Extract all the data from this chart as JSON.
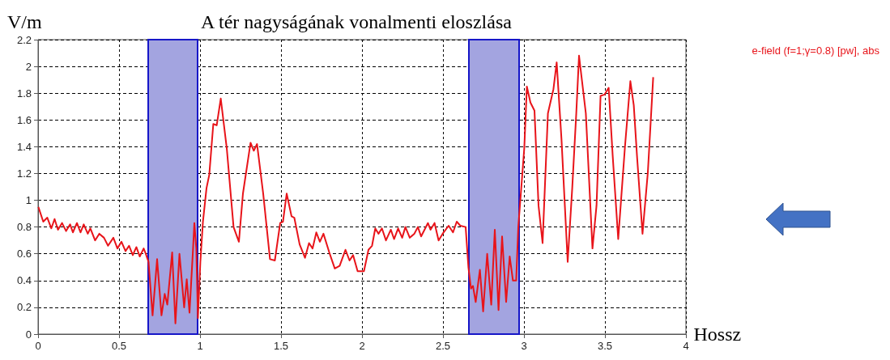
{
  "chart_data": {
    "type": "line",
    "title": "A tér nagyságának vonalmenti eloszlása",
    "xlabel": "Hossz",
    "ylabel": "V/m",
    "x": [
      0.002,
      0.032,
      0.057,
      0.082,
      0.102,
      0.123,
      0.148,
      0.173,
      0.198,
      0.215,
      0.24,
      0.262,
      0.282,
      0.307,
      0.323,
      0.352,
      0.378,
      0.407,
      0.432,
      0.465,
      0.49,
      0.515,
      0.54,
      0.562,
      0.585,
      0.607,
      0.628,
      0.652,
      0.665,
      0.682,
      0.707,
      0.735,
      0.762,
      0.782,
      0.798,
      0.828,
      0.848,
      0.873,
      0.902,
      0.918,
      0.935,
      0.957,
      0.965,
      0.977,
      0.987,
      1.002,
      1.018,
      1.04,
      1.057,
      1.082,
      1.103,
      1.128,
      1.165,
      1.207,
      1.24,
      1.265,
      1.312,
      1.332,
      1.352,
      1.39,
      1.432,
      1.462,
      1.495,
      1.512,
      1.535,
      1.565,
      1.582,
      1.615,
      1.648,
      1.673,
      1.695,
      1.718,
      1.74,
      1.762,
      1.798,
      1.832,
      1.862,
      1.898,
      1.923,
      1.945,
      1.973,
      2.012,
      2.04,
      2.062,
      2.082,
      2.102,
      2.123,
      2.148,
      2.178,
      2.198,
      2.223,
      2.248,
      2.268,
      2.295,
      2.323,
      2.345,
      2.365,
      2.407,
      2.423,
      2.448,
      2.473,
      2.498,
      2.535,
      2.562,
      2.585,
      2.607,
      2.64,
      2.657,
      2.673,
      2.685,
      2.702,
      2.728,
      2.748,
      2.773,
      2.798,
      2.82,
      2.843,
      2.865,
      2.89,
      2.912,
      2.932,
      2.952,
      2.965,
      2.982,
      3.002,
      3.018,
      3.04,
      3.065,
      3.09,
      3.115,
      3.148,
      3.182,
      3.202,
      3.232,
      3.27,
      3.298,
      3.323,
      3.34,
      3.382,
      3.423,
      3.448,
      3.473,
      3.498,
      3.523,
      3.548,
      3.582,
      3.623,
      3.657,
      3.678,
      3.698,
      3.732,
      3.765,
      3.798
    ],
    "series": [
      {
        "name": "e-field (f=1;γ=0.8) [pw], abs",
        "color": "#e8141a",
        "values": [
          0.95,
          0.84,
          0.87,
          0.79,
          0.86,
          0.78,
          0.83,
          0.77,
          0.82,
          0.76,
          0.83,
          0.76,
          0.82,
          0.75,
          0.79,
          0.7,
          0.75,
          0.72,
          0.66,
          0.72,
          0.64,
          0.69,
          0.62,
          0.66,
          0.59,
          0.65,
          0.58,
          0.64,
          0.6,
          0.54,
          0.14,
          0.56,
          0.14,
          0.3,
          0.22,
          0.61,
          0.08,
          0.6,
          0.2,
          0.41,
          0.16,
          0.64,
          0.83,
          0.64,
          0.12,
          0.54,
          0.84,
          1.09,
          1.19,
          1.57,
          1.56,
          1.76,
          1.39,
          0.8,
          0.69,
          1.05,
          1.43,
          1.37,
          1.42,
          1.05,
          0.56,
          0.55,
          0.83,
          0.84,
          1.05,
          0.88,
          0.87,
          0.67,
          0.57,
          0.68,
          0.64,
          0.76,
          0.69,
          0.75,
          0.61,
          0.49,
          0.51,
          0.63,
          0.55,
          0.59,
          0.47,
          0.47,
          0.63,
          0.66,
          0.79,
          0.75,
          0.79,
          0.7,
          0.78,
          0.71,
          0.79,
          0.72,
          0.8,
          0.72,
          0.75,
          0.8,
          0.73,
          0.83,
          0.78,
          0.83,
          0.7,
          0.75,
          0.81,
          0.76,
          0.84,
          0.81,
          0.8,
          0.5,
          0.34,
          0.36,
          0.24,
          0.48,
          0.17,
          0.6,
          0.22,
          0.78,
          0.18,
          0.73,
          0.24,
          0.58,
          0.4,
          0.4,
          0.8,
          1.07,
          1.39,
          1.85,
          1.73,
          1.67,
          0.96,
          0.68,
          1.65,
          1.83,
          2.03,
          1.45,
          0.54,
          1.09,
          1.65,
          2.08,
          1.65,
          0.64,
          0.96,
          1.78,
          1.79,
          1.84,
          1.33,
          0.71,
          1.39,
          1.89,
          1.71,
          1.33,
          0.75,
          1.21,
          1.92
        ]
      }
    ],
    "bands": [
      {
        "axis": "x",
        "from": 0.68,
        "to": 0.985,
        "color": "#a3a4e0"
      },
      {
        "axis": "x",
        "from": 2.66,
        "to": 2.97,
        "color": "#a3a4e0"
      }
    ],
    "xlim": [
      0,
      4
    ],
    "xticks": [
      0,
      0.5,
      1,
      1.5,
      2,
      2.5,
      3,
      3.5,
      4
    ],
    "ylim": [
      0,
      2.2
    ],
    "yticks": [
      0,
      0.2,
      0.4,
      0.6,
      0.8,
      1,
      1.2,
      1.4,
      1.6,
      1.8,
      2,
      2.2
    ],
    "grid": true,
    "legend": "top right",
    "marker": "none",
    "line_style": "solid"
  }
}
